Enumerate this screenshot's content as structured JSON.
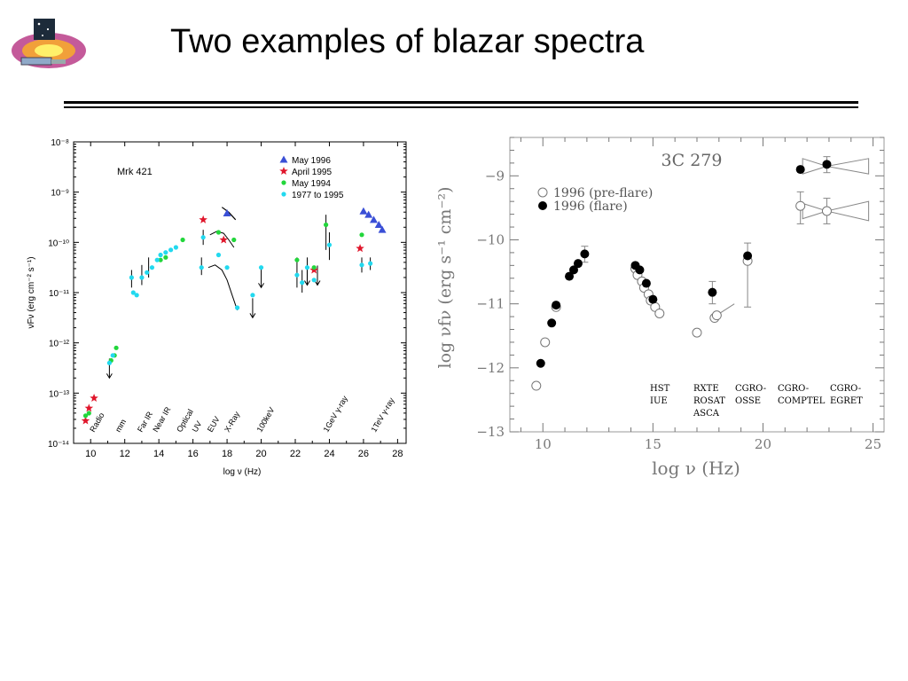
{
  "slide": {
    "title": "Two examples of blazar spectra"
  },
  "colors": {
    "may1996": "#3a4fd6",
    "april1995": "#e0162b",
    "may1994": "#22d63b",
    "y1977_1995": "#22d9ef",
    "axes": "#000000",
    "panel2_axes": "#777777"
  },
  "chart_data": [
    {
      "type": "scatter",
      "title": "Mrk 421",
      "xlabel": "log ν (Hz)",
      "ylabel": "νFν (erg cm⁻² s⁻¹)",
      "xlim": [
        9,
        28.5
      ],
      "ylim": [
        -14,
        -8
      ],
      "y_scale": "log",
      "xticks": [
        10,
        12,
        14,
        16,
        18,
        20,
        22,
        24,
        26,
        28
      ],
      "yticks": [
        "10⁻⁸",
        "10⁻⁹",
        "10⁻¹⁰",
        "10⁻¹¹",
        "10⁻¹²",
        "10⁻¹³",
        "10⁻¹⁴"
      ],
      "band_labels": [
        "Radio",
        "mm",
        "Far IR",
        "Near IR",
        "Optical",
        "UV",
        "EUV",
        "X-Ray",
        "100keV",
        "1GeV γ-ray",
        "1TeV γ-ray"
      ],
      "legend_position": "top-right",
      "series": [
        {
          "name": "May 1996",
          "marker": "triangle",
          "color": "#3a4fd6",
          "points": [
            [
              18.0,
              -9.42
            ],
            [
              26.0,
              -9.38
            ],
            [
              26.3,
              -9.45
            ],
            [
              26.6,
              -9.55
            ],
            [
              26.9,
              -9.65
            ],
            [
              27.1,
              -9.75
            ]
          ]
        },
        {
          "name": "April 1995",
          "marker": "star",
          "color": "#e0162b",
          "points": [
            [
              9.7,
              -13.55
            ],
            [
              9.9,
              -13.3
            ],
            [
              10.2,
              -13.1
            ],
            [
              16.6,
              -9.55
            ],
            [
              17.8,
              -9.95
            ],
            [
              23.1,
              -10.55
            ],
            [
              25.8,
              -10.12
            ]
          ]
        },
        {
          "name": "May 1994",
          "marker": "circle",
          "color": "#22d63b",
          "points": [
            [
              9.7,
              -13.45
            ],
            [
              9.9,
              -13.4
            ],
            [
              11.2,
              -12.35
            ],
            [
              11.4,
              -12.25
            ],
            [
              11.5,
              -12.1
            ],
            [
              14.1,
              -10.35
            ],
            [
              14.4,
              -10.3
            ],
            [
              15.4,
              -9.95
            ],
            [
              17.5,
              -9.8
            ],
            [
              18.4,
              -9.95
            ],
            [
              22.1,
              -10.35
            ],
            [
              23.1,
              -10.5
            ],
            [
              23.8,
              -9.65
            ],
            [
              25.9,
              -9.85
            ]
          ]
        },
        {
          "name": "1977 to 1995",
          "marker": "circle",
          "color": "#22d9ef",
          "points": [
            [
              11.1,
              -12.4
            ],
            [
              11.3,
              -12.25
            ],
            [
              12.4,
              -10.7
            ],
            [
              12.5,
              -11.0
            ],
            [
              12.7,
              -11.05
            ],
            [
              13.0,
              -10.7
            ],
            [
              13.3,
              -10.6
            ],
            [
              13.6,
              -10.5
            ],
            [
              13.9,
              -10.35
            ],
            [
              14.1,
              -10.25
            ],
            [
              14.4,
              -10.2
            ],
            [
              14.7,
              -10.15
            ],
            [
              15.0,
              -10.1
            ],
            [
              16.6,
              -9.9
            ],
            [
              16.5,
              -10.5
            ],
            [
              17.5,
              -10.25
            ],
            [
              18.0,
              -10.5
            ],
            [
              18.6,
              -11.3
            ],
            [
              19.5,
              -11.05
            ],
            [
              20.0,
              -10.5
            ],
            [
              22.1,
              -10.65
            ],
            [
              22.4,
              -10.8
            ],
            [
              22.7,
              -10.5
            ],
            [
              23.1,
              -10.75
            ],
            [
              24.0,
              -10.05
            ],
            [
              25.9,
              -10.45
            ],
            [
              26.4,
              -10.42
            ]
          ]
        }
      ],
      "upper_limits": [
        [
          11.1,
          -12.7
        ],
        [
          19.5,
          -11.5
        ],
        [
          20.0,
          -10.9
        ],
        [
          22.7,
          -10.85
        ],
        [
          23.3,
          -10.85
        ]
      ]
    },
    {
      "type": "scatter",
      "title": "3C 279",
      "xlabel": "log ν (Hz)",
      "ylabel": "log νfν (erg s⁻¹ cm⁻²)",
      "xlim": [
        8.5,
        25.5
      ],
      "ylim": [
        -13,
        -8.4
      ],
      "xticks": [
        10,
        15,
        20,
        25
      ],
      "yticks": [
        -9,
        -10,
        -11,
        -12,
        -13
      ],
      "legend_position": "top-left",
      "legend": [
        {
          "name": "1996 (pre-flare)",
          "marker": "open-circle"
        },
        {
          "name": "1996 (flare)",
          "marker": "filled-circle"
        }
      ],
      "instruments": [
        {
          "line1": "HST",
          "line2": "IUE",
          "line3": ""
        },
        {
          "line1": "RXTE",
          "line2": "ROSAT",
          "line3": "ASCA"
        },
        {
          "line1": "CGRO-",
          "line2": "OSSE",
          "line3": ""
        },
        {
          "line1": "CGRO-",
          "line2": "COMPTEL",
          "line3": ""
        },
        {
          "line1": "CGRO-",
          "line2": "EGRET",
          "line3": ""
        }
      ],
      "series": [
        {
          "name": "1996 (pre-flare)",
          "marker": "open-circle",
          "points": [
            [
              9.7,
              -12.28
            ],
            [
              10.1,
              -11.6
            ],
            [
              10.6,
              -11.05
            ],
            [
              14.2,
              -10.45
            ],
            [
              14.3,
              -10.55
            ],
            [
              14.5,
              -10.65
            ],
            [
              14.6,
              -10.75
            ],
            [
              14.8,
              -10.85
            ],
            [
              14.9,
              -10.95
            ],
            [
              15.1,
              -11.05
            ],
            [
              15.3,
              -11.15
            ],
            [
              17.0,
              -11.45
            ],
            [
              17.8,
              -11.22
            ],
            [
              17.9,
              -11.18
            ],
            [
              19.3,
              -10.33
            ],
            [
              21.7,
              -9.47
            ],
            [
              22.9,
              -9.55
            ]
          ]
        },
        {
          "name": "1996 (flare)",
          "marker": "filled-circle",
          "points": [
            [
              9.9,
              -11.93
            ],
            [
              10.4,
              -11.3
            ],
            [
              10.6,
              -11.02
            ],
            [
              11.2,
              -10.57
            ],
            [
              11.4,
              -10.47
            ],
            [
              11.6,
              -10.37
            ],
            [
              11.9,
              -10.22
            ],
            [
              14.2,
              -10.4
            ],
            [
              14.4,
              -10.47
            ],
            [
              14.7,
              -10.68
            ],
            [
              15.0,
              -10.93
            ],
            [
              17.7,
              -10.82
            ],
            [
              19.3,
              -10.25
            ],
            [
              21.7,
              -8.9
            ],
            [
              22.9,
              -8.82
            ]
          ]
        }
      ]
    }
  ]
}
